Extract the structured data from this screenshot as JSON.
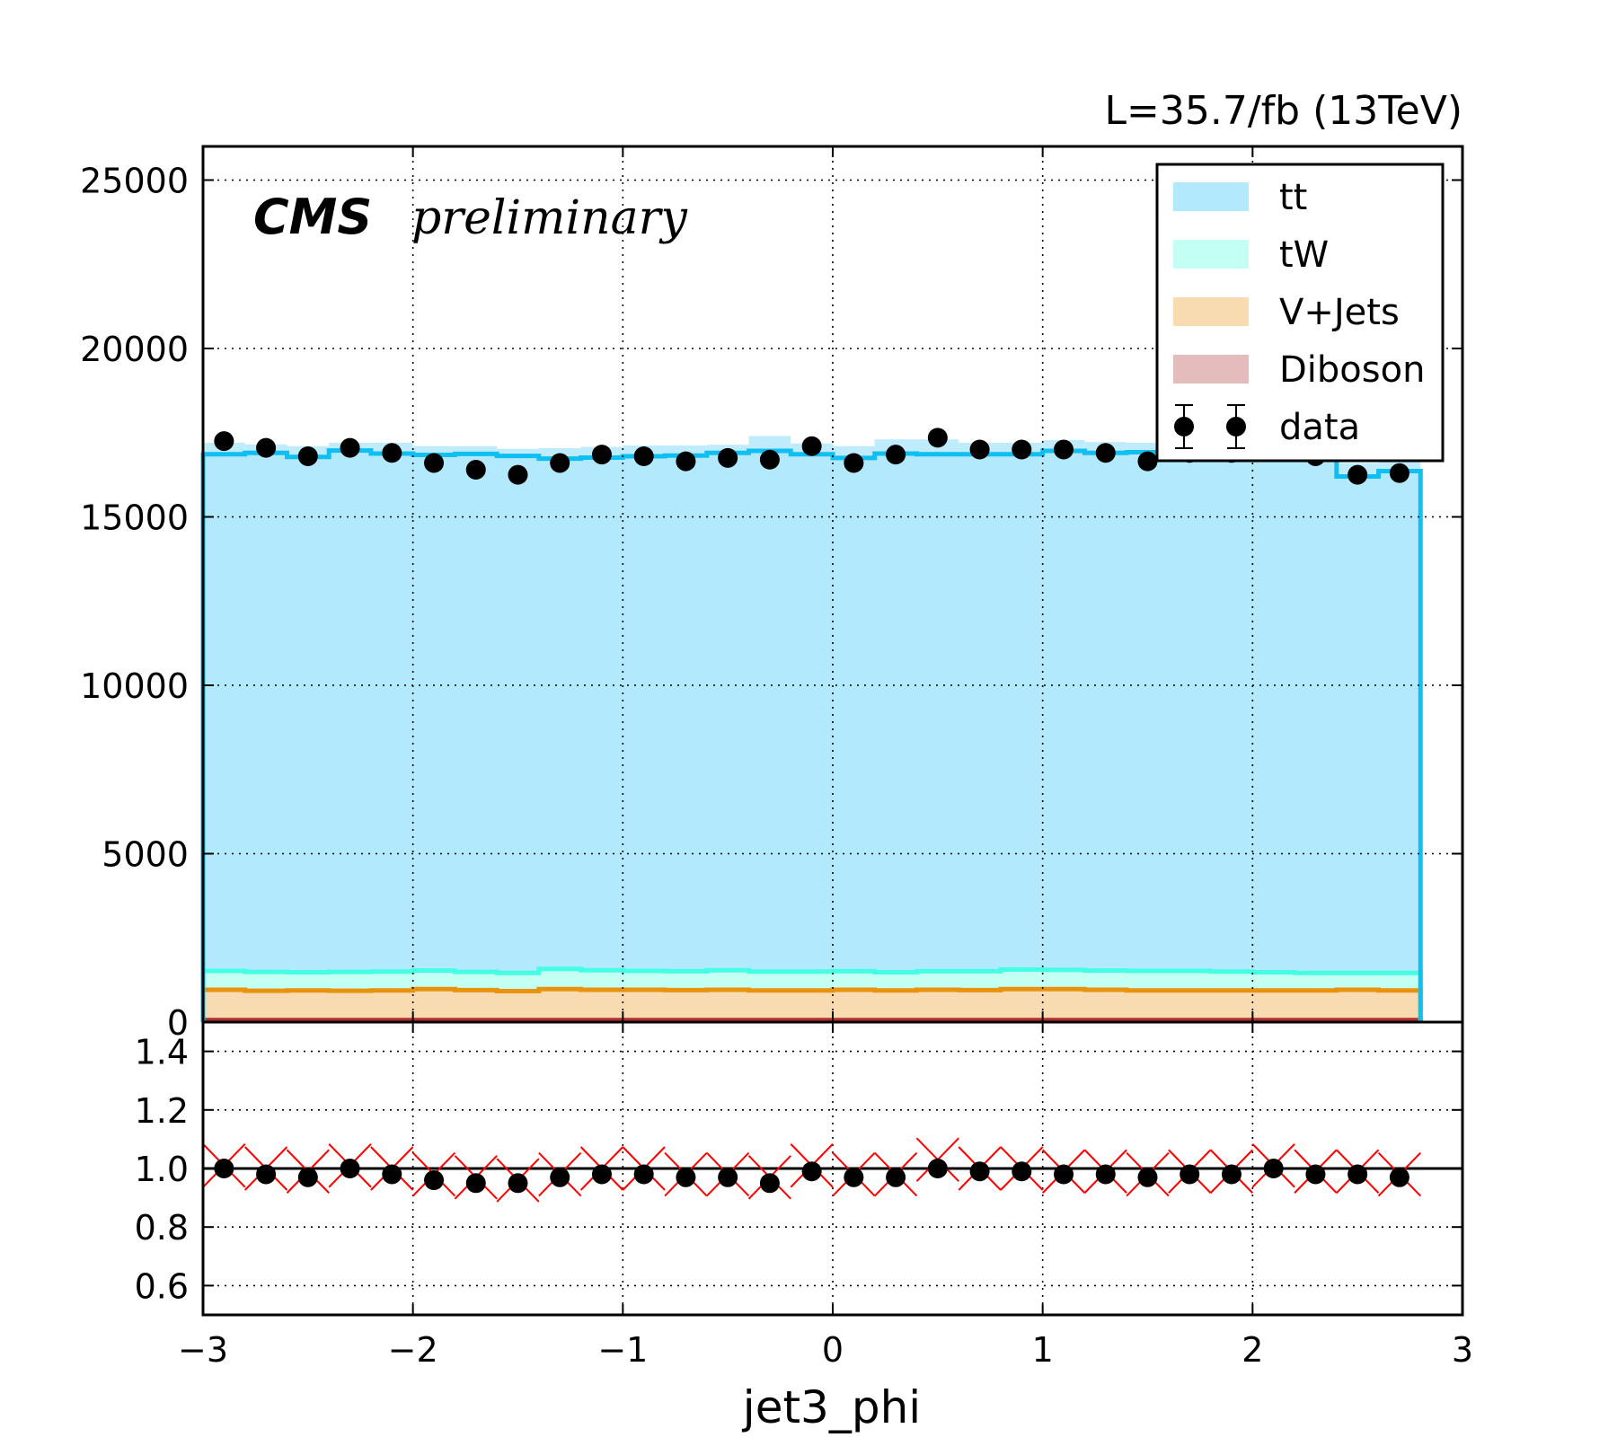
{
  "chart_data": [
    {
      "type": "stacked-histogram",
      "title": "",
      "top_right_label": "L=35.7/fb (13TeV)",
      "cms_label": "CMS",
      "cms_sublabel": "preliminary",
      "ylabel": "",
      "xlim": [
        -3,
        3
      ],
      "ylim": [
        0,
        26000
      ],
      "ytick_labels": [
        "0",
        "5000",
        "10000",
        "15000",
        "20000",
        "25000"
      ],
      "yticks": [
        0,
        5000,
        10000,
        15000,
        20000,
        25000
      ],
      "grid": true,
      "legend_position": "top-right",
      "bin_edges": [
        -3.0,
        -2.8,
        -2.6,
        -2.4,
        -2.2,
        -2.0,
        -1.8,
        -1.6,
        -1.4,
        -1.2,
        -1.0,
        -0.8,
        -0.6,
        -0.4,
        -0.2,
        0.0,
        0.2,
        0.4,
        0.6,
        0.8,
        1.0,
        1.2,
        1.4,
        1.6,
        1.8,
        2.0,
        2.2,
        2.4,
        2.6,
        2.8
      ],
      "stack": [
        {
          "name": "Diboson",
          "fill": "#e4bcbc",
          "edge": "#b03030",
          "values": [
            60,
            60,
            60,
            60,
            60,
            60,
            60,
            60,
            60,
            60,
            60,
            60,
            60,
            60,
            60,
            60,
            60,
            60,
            60,
            60,
            60,
            60,
            60,
            60,
            60,
            60,
            60,
            60,
            60
          ]
        },
        {
          "name": "V+Jets",
          "fill": "#f8dbb0",
          "edge": "#e8920e",
          "values": [
            900,
            870,
            880,
            870,
            880,
            920,
            890,
            860,
            920,
            900,
            900,
            890,
            900,
            880,
            880,
            900,
            880,
            900,
            890,
            920,
            920,
            900,
            880,
            880,
            880,
            880,
            880,
            900,
            880
          ]
        },
        {
          "name": "tW",
          "fill": "#c4fff4",
          "edge": "#45ffe4",
          "values": [
            560,
            560,
            540,
            560,
            560,
            550,
            540,
            540,
            600,
            580,
            560,
            560,
            580,
            560,
            560,
            550,
            540,
            550,
            560,
            580,
            570,
            570,
            580,
            580,
            560,
            540,
            520,
            500,
            520
          ]
        },
        {
          "name": "tt",
          "fill": "#b3e9fc",
          "edge": "#10bff2",
          "values": [
            15340,
            15410,
            15300,
            15480,
            15380,
            15310,
            15380,
            15350,
            15150,
            15220,
            15280,
            15310,
            15360,
            15460,
            15360,
            15240,
            15400,
            15350,
            15350,
            15300,
            15410,
            15370,
            15400,
            15460,
            15480,
            15450,
            15540,
            14740,
            14900
          ]
        }
      ],
      "mc_total_with_uncertainty": [
        17200,
        17150,
        17100,
        17200,
        17200,
        17100,
        17100,
        17020,
        17040,
        17080,
        17120,
        17120,
        17140,
        17400,
        17180,
        17100,
        17300,
        17300,
        17200,
        17200,
        17280,
        17220,
        17200,
        17200,
        17200,
        17180,
        17220,
        16600,
        16700
      ],
      "data": {
        "name": "data",
        "values": [
          17250,
          17050,
          16800,
          17050,
          16900,
          16600,
          16400,
          16250,
          16600,
          16850,
          16800,
          16650,
          16750,
          16700,
          17100,
          16600,
          16850,
          17350,
          17000,
          17000,
          17000,
          16900,
          16650,
          16900,
          16900,
          17100,
          16800,
          16250,
          16300
        ]
      }
    },
    {
      "type": "ratio",
      "xlabel": "jet3_phi",
      "ylim": [
        0.5,
        1.5
      ],
      "ytick_labels": [
        "0.6",
        "0.8",
        "1.0",
        "1.2",
        "1.4"
      ],
      "yticks": [
        0.6,
        0.8,
        1.0,
        1.2,
        1.4
      ],
      "xtick_labels": [
        "−3",
        "−2",
        "−1",
        "0",
        "1",
        "2",
        "3"
      ],
      "xticks": [
        -3,
        -2,
        -1,
        0,
        1,
        2,
        3
      ],
      "reference_line": 1.0,
      "data_mc_ratio": [
        1.0,
        0.98,
        0.97,
        1.0,
        0.98,
        0.96,
        0.95,
        0.95,
        0.97,
        0.98,
        0.98,
        0.97,
        0.97,
        0.95,
        0.99,
        0.97,
        0.97,
        1.0,
        0.99,
        0.99,
        0.98,
        0.98,
        0.97,
        0.98,
        0.98,
        1.0,
        0.98,
        0.98,
        0.97
      ],
      "marker_ratio": [
        1.01,
        1.0,
        0.99,
        1.01,
        1.0,
        0.98,
        0.97,
        0.96,
        0.98,
        1.0,
        1.0,
        0.98,
        0.98,
        0.97,
        1.01,
        0.98,
        0.98,
        1.03,
        1.0,
        1.0,
        0.99,
        0.99,
        0.98,
        0.99,
        0.99,
        1.01,
        0.99,
        0.99,
        0.98
      ]
    }
  ],
  "colors": {
    "data_marker": "#000000",
    "ratio_cross": "#ff0000",
    "grid": "#000000"
  }
}
